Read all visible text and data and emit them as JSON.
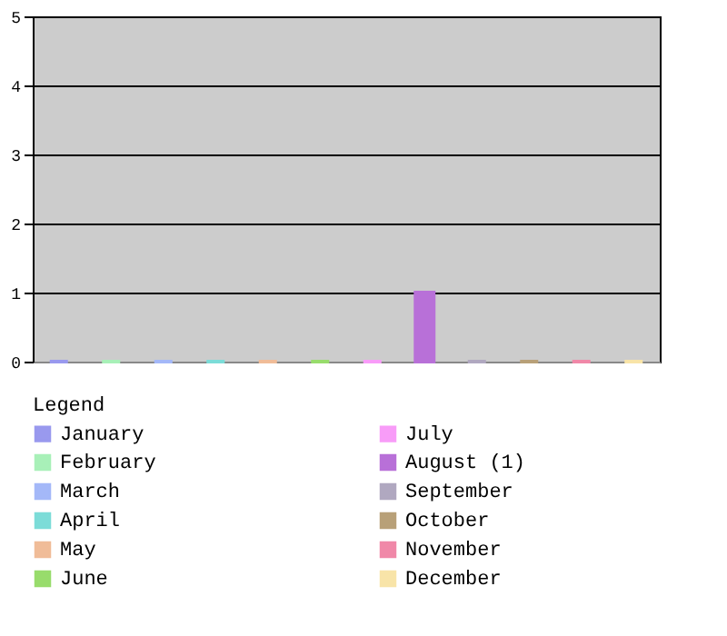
{
  "chart_data": {
    "type": "bar",
    "legend_title": "Legend",
    "categories": [
      null,
      null,
      null,
      null,
      null,
      null,
      null,
      null,
      null,
      null,
      null,
      null
    ],
    "series": [
      {
        "name": "January",
        "color": "#9999ee",
        "values": [
          0,
          null,
          null,
          null,
          null,
          null,
          null,
          null,
          null,
          null,
          null,
          null
        ]
      },
      {
        "name": "February",
        "color": "#a8f0b8",
        "values": [
          null,
          0,
          null,
          null,
          null,
          null,
          null,
          null,
          null,
          null,
          null,
          null
        ]
      },
      {
        "name": "March",
        "color": "#a4b8f8",
        "values": [
          null,
          null,
          0,
          null,
          null,
          null,
          null,
          null,
          null,
          null,
          null,
          null
        ]
      },
      {
        "name": "April",
        "color": "#7cdcd8",
        "values": [
          null,
          null,
          null,
          0,
          null,
          null,
          null,
          null,
          null,
          null,
          null,
          null
        ]
      },
      {
        "name": "May",
        "color": "#f0bc98",
        "values": [
          null,
          null,
          null,
          null,
          0,
          null,
          null,
          null,
          null,
          null,
          null,
          null
        ]
      },
      {
        "name": "June",
        "color": "#98dc6c",
        "values": [
          null,
          null,
          null,
          null,
          null,
          0,
          null,
          null,
          null,
          null,
          null,
          null
        ]
      },
      {
        "name": "July",
        "color": "#f89cf8",
        "values": [
          null,
          null,
          null,
          null,
          null,
          null,
          0,
          null,
          null,
          null,
          null,
          null
        ]
      },
      {
        "name": "August (1)",
        "color": "#b870d8",
        "values": [
          null,
          null,
          null,
          null,
          null,
          null,
          null,
          1,
          null,
          null,
          null,
          null
        ]
      },
      {
        "name": "September",
        "color": "#b0a8c0",
        "values": [
          null,
          null,
          null,
          null,
          null,
          null,
          null,
          null,
          0,
          null,
          null,
          null
        ]
      },
      {
        "name": "October",
        "color": "#b8a078",
        "values": [
          null,
          null,
          null,
          null,
          null,
          null,
          null,
          null,
          null,
          0,
          null,
          null
        ]
      },
      {
        "name": "November",
        "color": "#f088a8",
        "values": [
          null,
          null,
          null,
          null,
          null,
          null,
          null,
          null,
          null,
          null,
          0,
          null
        ]
      },
      {
        "name": "December",
        "color": "#f8e4a8",
        "values": [
          null,
          null,
          null,
          null,
          null,
          null,
          null,
          null,
          null,
          null,
          null,
          0
        ]
      }
    ],
    "ylim": [
      0,
      5
    ],
    "yticks": [
      0,
      1,
      2,
      3,
      4,
      5
    ],
    "grid": "y",
    "legend": "bottom",
    "tick_labels": "y"
  }
}
